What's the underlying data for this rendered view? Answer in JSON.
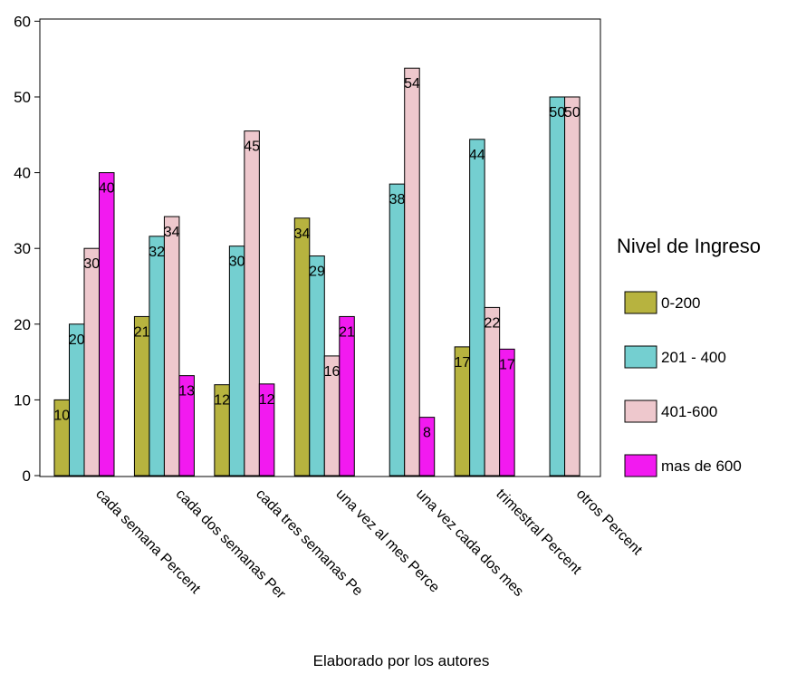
{
  "chart_data": {
    "type": "bar",
    "categories": [
      "cada semana Percent",
      "cada dos semanas Per",
      "cada tres semanas Pe",
      "una vez al mes Perce",
      "una vez cada dos mes",
      "trimestral Percent",
      "otros Percent"
    ],
    "series": [
      {
        "name": "0-200",
        "color": "#b7b33f",
        "values": [
          10,
          21,
          12,
          34,
          0,
          17,
          0
        ],
        "labels": [
          "10",
          "21",
          "12",
          "34",
          "",
          "17",
          ""
        ]
      },
      {
        "name": "201 - 400",
        "color": "#74cfd0",
        "values": [
          20,
          31.6,
          30.3,
          29,
          38.5,
          44.4,
          50
        ],
        "labels": [
          "20",
          "32",
          "30",
          "29",
          "38",
          "44",
          "50"
        ]
      },
      {
        "name": "401-600",
        "color": "#eec8cd",
        "values": [
          30,
          34.2,
          45.5,
          15.8,
          53.8,
          22.2,
          50
        ],
        "labels": [
          "30",
          "34",
          "45",
          "16",
          "54",
          "22",
          "50"
        ]
      },
      {
        "name": "mas de 600",
        "color": "#f21af0",
        "values": [
          40,
          13.2,
          12.1,
          21,
          7.7,
          16.7,
          0
        ],
        "labels": [
          "40",
          "13",
          "12",
          "21",
          "8",
          "17",
          ""
        ]
      }
    ],
    "xlabel": "Elaborado por los autores",
    "ylabel": "",
    "ylim": [
      0,
      60
    ],
    "yticks": [
      "0",
      "10",
      "20",
      "30",
      "40",
      "50",
      "60"
    ],
    "legend_title": "Nivel de Ingreso",
    "legend_position": "right",
    "grid": false
  }
}
